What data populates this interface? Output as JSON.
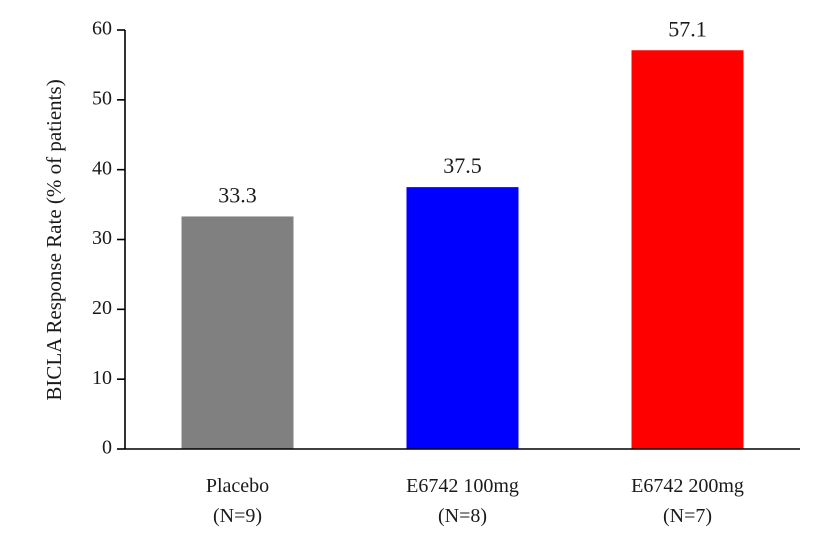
{
  "chart_data": {
    "type": "bar",
    "categories": [
      {
        "name": "Placebo",
        "n": "(N=9)"
      },
      {
        "name": "E6742 100mg",
        "n": "(N=8)"
      },
      {
        "name": "E6742 200mg",
        "n": "(N=7)"
      }
    ],
    "values": [
      33.3,
      37.5,
      57.1
    ],
    "data_labels": [
      "33.3",
      "37.5",
      "57.1"
    ],
    "colors": [
      "#808080",
      "#0000ff",
      "#ff0000"
    ],
    "ylabel": "BICLA Response Rate (% of patients)",
    "xlabel": "",
    "ylim": [
      0,
      60
    ],
    "yticks": [
      0,
      10,
      20,
      30,
      40,
      50,
      60
    ],
    "grid": false,
    "legend": "none"
  }
}
